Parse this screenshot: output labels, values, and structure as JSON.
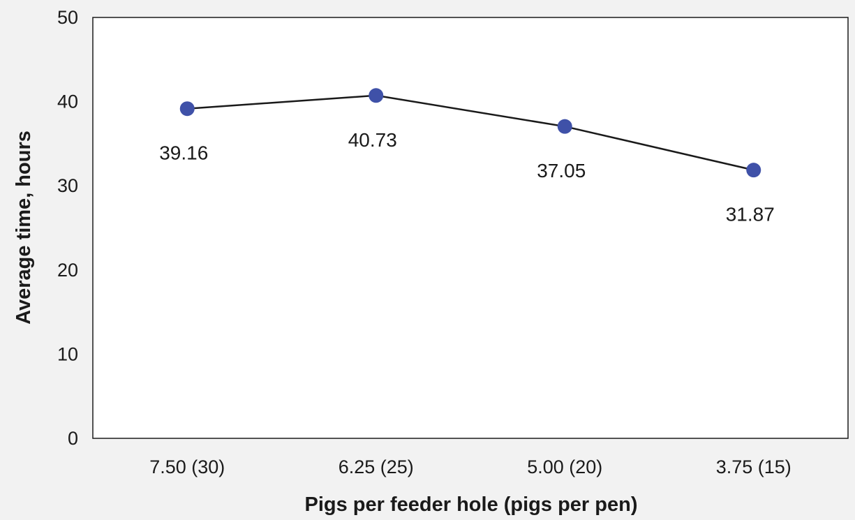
{
  "chart_data": {
    "type": "line",
    "categories": [
      "7.50 (30)",
      "6.25 (25)",
      "5.00 (20)",
      "3.75 (15)"
    ],
    "series": [
      {
        "values": [
          39.16,
          40.73,
          37.05,
          31.87
        ],
        "data_labels": [
          "39.16",
          "40.73",
          "37.05",
          "31.87"
        ],
        "color": "#3f51a8"
      }
    ],
    "title": "",
    "xlabel": "Pigs per feeder hole (pigs per pen)",
    "ylabel": "Average time, hours",
    "ylim": [
      0,
      50
    ],
    "yticks": [
      "0",
      "10",
      "20",
      "30",
      "40",
      "50"
    ],
    "grid": false,
    "line_color": "#1a1a1a",
    "plot_background": "#ffffff",
    "page_background": "#f2f2f2"
  }
}
